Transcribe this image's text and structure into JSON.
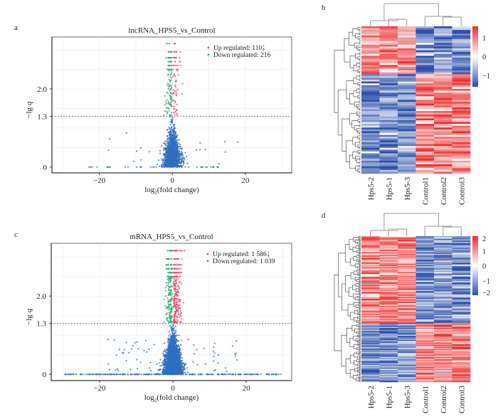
{
  "chart_data": [
    {
      "panel": "a",
      "type": "scatter",
      "title": "lncRNA_HPS5_vs_Control",
      "xlabel": {
        "base": "log",
        "sub": "2",
        "rest": "(fold change)"
      },
      "ylabel": {
        "prefix": "−lg",
        "var": "q"
      },
      "xlim": [
        -33,
        32.7
      ],
      "ylim": [
        -0.15,
        3.33
      ],
      "xticks": [
        {
          "v": -20,
          "label": "−20"
        },
        {
          "v": 0,
          "label": "0"
        },
        {
          "v": 20,
          "label": "20"
        }
      ],
      "yticks": [
        {
          "v": 0,
          "label": "0"
        },
        {
          "v": 1.3,
          "label": "1.3"
        },
        {
          "v": 2.0,
          "label": "2.0"
        }
      ],
      "threshold": 1.3,
      "grid": true,
      "legend": {
        "position": "top-right",
        "entries": [
          {
            "label": "Up regulated: 110；",
            "color": "#e8486a"
          },
          {
            "label": "Down regulated: 216",
            "color": "#2fa878"
          }
        ]
      },
      "series": [
        {
          "name": "Up regulated",
          "count": 110,
          "color": "#e8486a"
        },
        {
          "name": "Down regulated",
          "count": 216,
          "color": "#2fa878"
        },
        {
          "color": "#2f6fc0"
        }
      ]
    },
    {
      "panel": "c",
      "type": "scatter",
      "title": "mRNA_HPS5_vs_Control",
      "xlabel": {
        "base": "log",
        "sub": "2",
        "rest": "(fold change)"
      },
      "ylabel": {
        "prefix": "−lg",
        "var": "q"
      },
      "xlim": [
        -33.2,
        32.4
      ],
      "ylim": [
        -0.16,
        3.35
      ],
      "xticks": [
        {
          "v": -20,
          "label": "−20"
        },
        {
          "v": 0,
          "label": "0"
        },
        {
          "v": 20,
          "label": "20"
        }
      ],
      "yticks": [
        {
          "v": 0,
          "label": "0"
        },
        {
          "v": 1.3,
          "label": "1.3"
        },
        {
          "v": 2.0,
          "label": "2.0"
        }
      ],
      "threshold": 1.3,
      "grid": true,
      "legend": {
        "position": "top-right",
        "entries": [
          {
            "label": "Up regulated: 1 586；",
            "color": "#e8486a"
          },
          {
            "label": "Down regulated: 1 039",
            "color": "#2fa878"
          }
        ]
      },
      "series": [
        {
          "name": "Up regulated",
          "count": 1586,
          "color": "#e8486a"
        },
        {
          "name": "Down regulated",
          "count": 1039,
          "color": "#2fa878"
        },
        {
          "color": "#2f6fc0"
        }
      ]
    },
    {
      "panel": "b",
      "type": "heatmap",
      "columns": [
        "Hps5-2",
        "Hps5-1",
        "Hps5-3",
        "Control1",
        "Control2",
        "Control3"
      ],
      "colorbar": {
        "range": [
          -1.6,
          1.6
        ],
        "ticks": [
          {
            "v": 1,
            "label": "1"
          },
          {
            "v": 0,
            "label": "0"
          },
          {
            "v": -1,
            "label": "−1"
          }
        ],
        "low": "#2b4fa8",
        "mid": "#ffffff",
        "high": "#ec2c2c"
      },
      "clusters": {
        "hps5_high_fraction": 0.33
      }
    },
    {
      "panel": "d",
      "type": "heatmap",
      "columns": [
        "Hps5-2",
        "Hps5-1",
        "Hps5-3",
        "Control1",
        "Control2",
        "Control3"
      ],
      "colorbar": {
        "range": [
          -2,
          2
        ],
        "ticks": [
          {
            "v": 2,
            "label": "2"
          },
          {
            "v": 1,
            "label": "1"
          },
          {
            "v": 0,
            "label": "0"
          },
          {
            "v": -1,
            "label": "−1"
          },
          {
            "v": -2,
            "label": "−2"
          }
        ],
        "low": "#2b4fa8",
        "mid": "#ffffff",
        "high": "#ec2c2c"
      },
      "clusters": {
        "hps5_high_fraction": 0.6
      }
    }
  ]
}
